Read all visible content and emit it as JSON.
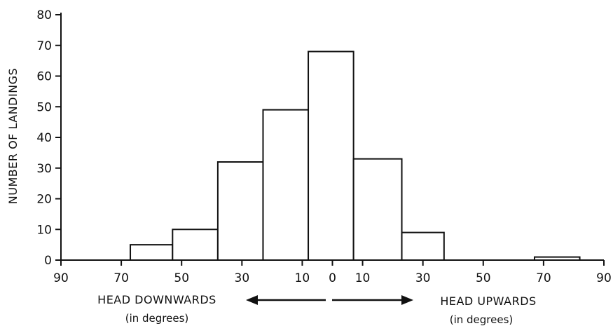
{
  "chart_data": {
    "type": "bar",
    "ylabel": "NUMBER OF LANDINGS",
    "ylim": [
      0,
      80
    ],
    "yticks": [
      0,
      10,
      20,
      30,
      40,
      50,
      60,
      70,
      80
    ],
    "xlim": [
      -90,
      90
    ],
    "xtick_values": [
      -90,
      -70,
      -50,
      -30,
      -10,
      0,
      10,
      30,
      50,
      70,
      90
    ],
    "xtick_labels": [
      "90",
      "70",
      "50",
      "30",
      "10",
      "0",
      "10",
      "30",
      "50",
      "70",
      "90"
    ],
    "bins": [
      {
        "x0": -67,
        "x1": -53,
        "value": 5
      },
      {
        "x0": -53,
        "x1": -38,
        "value": 10
      },
      {
        "x0": -38,
        "x1": -23,
        "value": 32
      },
      {
        "x0": -23,
        "x1": -8,
        "value": 49
      },
      {
        "x0": -8,
        "x1": 7,
        "value": 68
      },
      {
        "x0": 7,
        "x1": 23,
        "value": 33
      },
      {
        "x0": 23,
        "x1": 37,
        "value": 9
      },
      {
        "x0": 67,
        "x1": 82,
        "value": 1
      }
    ],
    "left_label": "HEAD DOWNWARDS",
    "left_sublabel": "(in degrees)",
    "right_label": "HEAD UPWARDS",
    "right_sublabel": "(in degrees)"
  }
}
